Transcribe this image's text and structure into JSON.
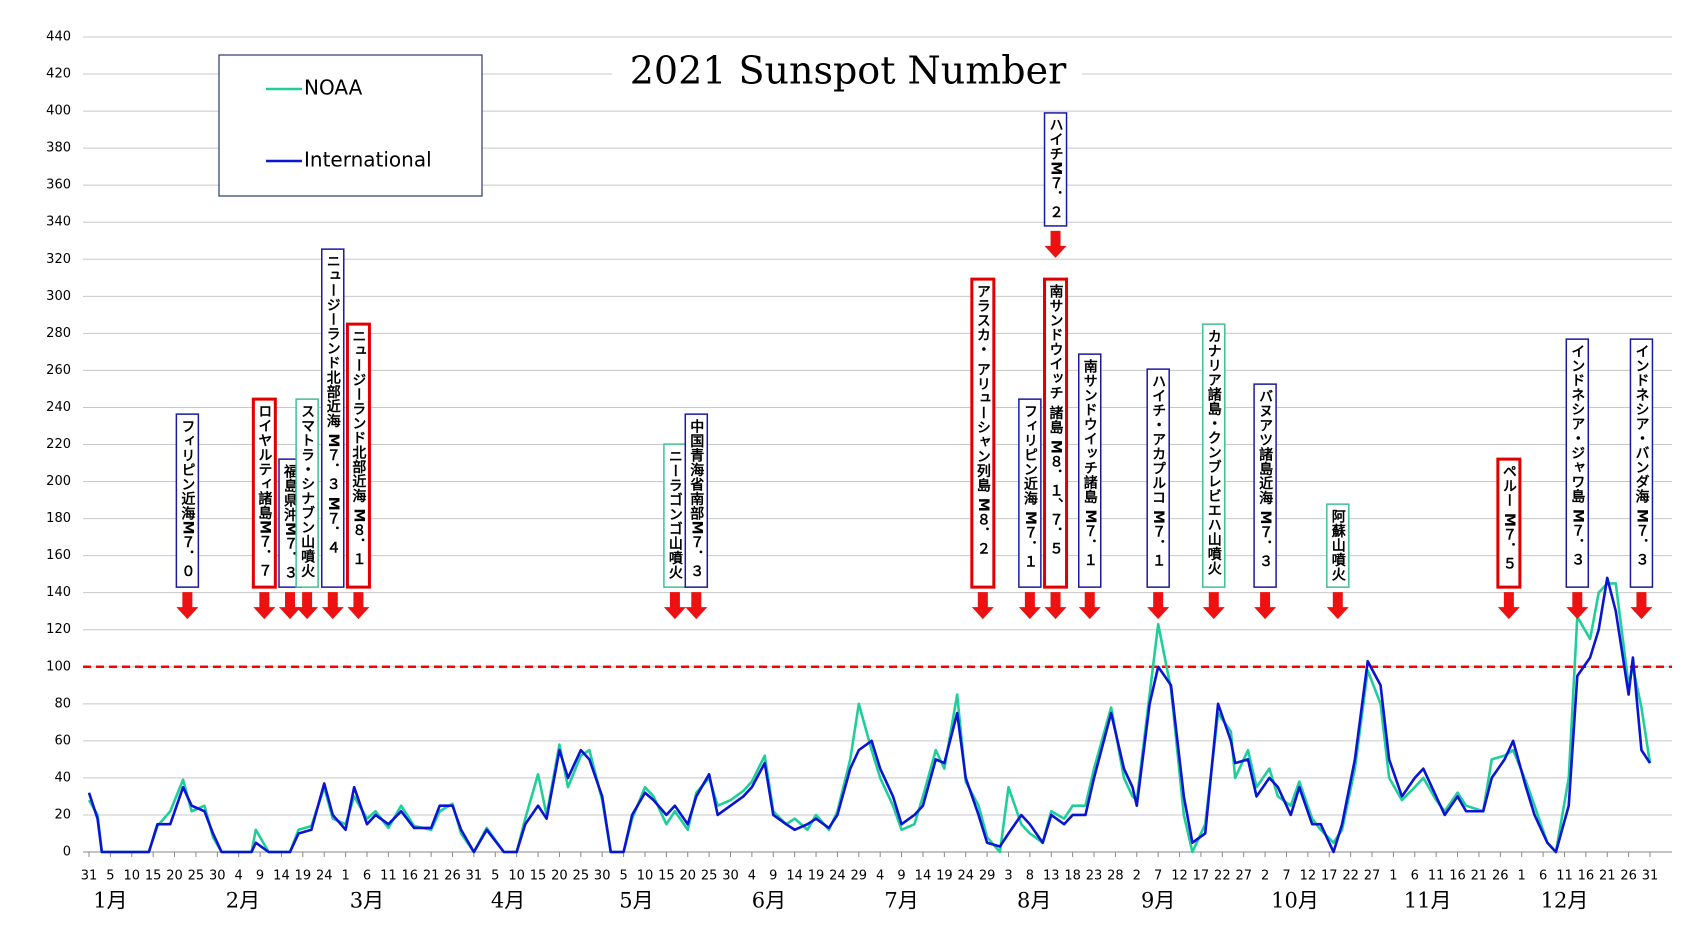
{
  "chart_data": {
    "type": "line",
    "title": "2021 Sunspot Number",
    "x": [
      0,
      2,
      3,
      14,
      16,
      19,
      22,
      24,
      27,
      29,
      31,
      38,
      39,
      42,
      47,
      49,
      52,
      55,
      57,
      60,
      62,
      65,
      67,
      70,
      73,
      76,
      80,
      82,
      85,
      87,
      90,
      93,
      97,
      100,
      102,
      105,
      107,
      110,
      112,
      115,
      117,
      120,
      122,
      125,
      127,
      130,
      132,
      135,
      137,
      140,
      142,
      145,
      147,
      150,
      153,
      155,
      158,
      160,
      163,
      165,
      168,
      170,
      173,
      175,
      178,
      180,
      183,
      185,
      188,
      190,
      193,
      195,
      198,
      200,
      203,
      205,
      208,
      210,
      213,
      215,
      218,
      220,
      223,
      225,
      228,
      230,
      233,
      235,
      239,
      242,
      244,
      245,
      248,
      250,
      253,
      256,
      258,
      261,
      264,
      267,
      268,
      271,
      273,
      276,
      278,
      281,
      283,
      286,
      288,
      291,
      293,
      296,
      299,
      302,
      304,
      307,
      310,
      312,
      315,
      317,
      320,
      322,
      326,
      328,
      331,
      333,
      336,
      338,
      341,
      343,
      346,
      348,
      351,
      353,
      355,
      357,
      360,
      361,
      363,
      365
    ],
    "series": [
      {
        "name": "NOAA",
        "color": "#1fcf9a",
        "values": [
          28,
          20,
          0,
          0,
          14,
          22,
          39,
          22,
          25,
          8,
          0,
          0,
          12,
          0,
          0,
          12,
          14,
          35,
          18,
          15,
          30,
          18,
          22,
          13,
          25,
          14,
          12,
          22,
          26,
          10,
          0,
          13,
          0,
          0,
          18,
          42,
          20,
          58,
          35,
          52,
          55,
          28,
          0,
          0,
          18,
          35,
          30,
          15,
          22,
          12,
          32,
          40,
          25,
          28,
          33,
          38,
          52,
          22,
          15,
          18,
          12,
          20,
          12,
          22,
          50,
          80,
          55,
          40,
          25,
          12,
          15,
          30,
          55,
          45,
          85,
          38,
          25,
          8,
          0,
          35,
          15,
          10,
          5,
          22,
          18,
          25,
          25,
          45,
          78,
          40,
          30,
          28,
          85,
          123,
          88,
          20,
          0,
          15,
          75,
          65,
          40,
          55,
          35,
          45,
          30,
          25,
          38,
          18,
          12,
          5,
          12,
          45,
          98,
          80,
          40,
          28,
          35,
          40,
          28,
          22,
          32,
          25,
          22,
          50,
          52,
          55,
          38,
          25,
          5,
          0,
          40,
          127,
          115,
          140,
          145,
          145,
          90,
          100,
          78,
          48
        ]
      },
      {
        "name": "International",
        "color": "#0a14d2",
        "values": [
          32,
          18,
          0,
          0,
          15,
          15,
          35,
          25,
          22,
          10,
          0,
          0,
          5,
          0,
          0,
          10,
          12,
          37,
          20,
          12,
          35,
          15,
          20,
          15,
          22,
          13,
          13,
          25,
          25,
          12,
          0,
          12,
          0,
          0,
          15,
          25,
          18,
          55,
          40,
          55,
          50,
          30,
          0,
          0,
          20,
          32,
          28,
          20,
          25,
          15,
          30,
          42,
          20,
          25,
          30,
          35,
          48,
          20,
          15,
          12,
          15,
          18,
          13,
          20,
          45,
          55,
          60,
          45,
          30,
          15,
          20,
          25,
          50,
          48,
          75,
          40,
          20,
          5,
          3,
          10,
          20,
          15,
          5,
          20,
          15,
          20,
          20,
          40,
          75,
          45,
          35,
          25,
          80,
          100,
          90,
          30,
          5,
          10,
          80,
          60,
          48,
          50,
          30,
          40,
          35,
          20,
          35,
          15,
          15,
          0,
          15,
          50,
          103,
          90,
          50,
          30,
          40,
          45,
          30,
          20,
          30,
          22,
          22,
          40,
          50,
          60,
          35,
          20,
          5,
          0,
          25,
          95,
          105,
          120,
          148,
          130,
          85,
          105,
          55,
          48
        ]
      }
    ],
    "xlim": [
      0,
      365
    ],
    "xticks": [
      {
        "value": 0,
        "label": "31"
      },
      {
        "value": 5,
        "label": "5"
      },
      {
        "value": 10,
        "label": "10"
      },
      {
        "value": 15,
        "label": "15"
      },
      {
        "value": 20,
        "label": "20"
      },
      {
        "value": 25,
        "label": "25"
      },
      {
        "value": 30,
        "label": "30"
      },
      {
        "value": 35,
        "label": "4"
      },
      {
        "value": 40,
        "label": "9"
      },
      {
        "value": 45,
        "label": "14"
      },
      {
        "value": 50,
        "label": "19"
      },
      {
        "value": 55,
        "label": "24"
      },
      {
        "value": 60,
        "label": "1"
      },
      {
        "value": 65,
        "label": "6"
      },
      {
        "value": 70,
        "label": "11"
      },
      {
        "value": 75,
        "label": "16"
      },
      {
        "value": 80,
        "label": "21"
      },
      {
        "value": 85,
        "label": "26"
      },
      {
        "value": 90,
        "label": "31"
      },
      {
        "value": 95,
        "label": "5"
      },
      {
        "value": 100,
        "label": "10"
      },
      {
        "value": 105,
        "label": "15"
      },
      {
        "value": 110,
        "label": "20"
      },
      {
        "value": 115,
        "label": "25"
      },
      {
        "value": 120,
        "label": "30"
      },
      {
        "value": 125,
        "label": "5"
      },
      {
        "value": 130,
        "label": "10"
      },
      {
        "value": 135,
        "label": "15"
      },
      {
        "value": 140,
        "label": "20"
      },
      {
        "value": 145,
        "label": "25"
      },
      {
        "value": 150,
        "label": "30"
      },
      {
        "value": 155,
        "label": "4"
      },
      {
        "value": 160,
        "label": "9"
      },
      {
        "value": 165,
        "label": "14"
      },
      {
        "value": 170,
        "label": "19"
      },
      {
        "value": 175,
        "label": "24"
      },
      {
        "value": 180,
        "label": "29"
      },
      {
        "value": 185,
        "label": "4"
      },
      {
        "value": 190,
        "label": "9"
      },
      {
        "value": 195,
        "label": "14"
      },
      {
        "value": 200,
        "label": "19"
      },
      {
        "value": 205,
        "label": "24"
      },
      {
        "value": 210,
        "label": "29"
      },
      {
        "value": 215,
        "label": "3"
      },
      {
        "value": 220,
        "label": "8"
      },
      {
        "value": 225,
        "label": "13"
      },
      {
        "value": 230,
        "label": "18"
      },
      {
        "value": 235,
        "label": "23"
      },
      {
        "value": 240,
        "label": "28"
      },
      {
        "value": 245,
        "label": "2"
      },
      {
        "value": 250,
        "label": "7"
      },
      {
        "value": 255,
        "label": "12"
      },
      {
        "value": 260,
        "label": "17"
      },
      {
        "value": 265,
        "label": "22"
      },
      {
        "value": 270,
        "label": "27"
      },
      {
        "value": 275,
        "label": "2"
      },
      {
        "value": 280,
        "label": "7"
      },
      {
        "value": 285,
        "label": "12"
      },
      {
        "value": 290,
        "label": "17"
      },
      {
        "value": 295,
        "label": "22"
      },
      {
        "value": 300,
        "label": "27"
      },
      {
        "value": 305,
        "label": "1"
      },
      {
        "value": 310,
        "label": "6"
      },
      {
        "value": 315,
        "label": "11"
      },
      {
        "value": 320,
        "label": "16"
      },
      {
        "value": 325,
        "label": "21"
      },
      {
        "value": 330,
        "label": "26"
      },
      {
        "value": 335,
        "label": "1"
      },
      {
        "value": 340,
        "label": "6"
      },
      {
        "value": 345,
        "label": "11"
      },
      {
        "value": 350,
        "label": "16"
      },
      {
        "value": 355,
        "label": "21"
      },
      {
        "value": 360,
        "label": "26"
      },
      {
        "value": 365,
        "label": "31"
      }
    ],
    "month_labels": [
      {
        "value": 5,
        "label": "1月"
      },
      {
        "value": 36,
        "label": "2月"
      },
      {
        "value": 65,
        "label": "3月"
      },
      {
        "value": 98,
        "label": "4月"
      },
      {
        "value": 128,
        "label": "5月"
      },
      {
        "value": 159,
        "label": "6月"
      },
      {
        "value": 190,
        "label": "7月"
      },
      {
        "value": 221,
        "label": "8月"
      },
      {
        "value": 250,
        "label": "9月"
      },
      {
        "value": 282,
        "label": "10月"
      },
      {
        "value": 313,
        "label": "11月"
      },
      {
        "value": 345,
        "label": "12月"
      }
    ],
    "ylim": [
      0,
      440
    ],
    "yticks": [
      0,
      20,
      40,
      60,
      80,
      100,
      120,
      140,
      160,
      180,
      200,
      220,
      240,
      260,
      280,
      300,
      320,
      340,
      360,
      380,
      400,
      420,
      440
    ],
    "grid": true,
    "reference_line": {
      "value": 100,
      "color": "#ff0000"
    },
    "annotations": [
      {
        "x": 23,
        "text": "フィリピン近海M７．０",
        "border": "#1a1aa0"
      },
      {
        "x": 41,
        "text": "ロイヤルティ諸島M７．７",
        "border": "#e00000"
      },
      {
        "x": 47,
        "text": "福島県沖M７．３",
        "border": "#1a1aa0"
      },
      {
        "x": 51,
        "text": "スマトラ・シナブン山噴火",
        "border": "#40c090"
      },
      {
        "x": 57,
        "text": "ニュージーランド北部近海 M７．３ M７．４",
        "border": "#1a1aa0"
      },
      {
        "x": 63,
        "text": "ニュージーランド北部近海 M８．１",
        "border": "#e00000"
      },
      {
        "x": 137,
        "text": "ニーラゴンゴ山噴火",
        "border": "#40c090"
      },
      {
        "x": 142,
        "text": "中国青海省南部M７．３",
        "border": "#1a1aa0"
      },
      {
        "x": 209,
        "text": "アラスカ・ アリューシャン列島 M８．２",
        "border": "#e00000"
      },
      {
        "x": 220,
        "text": "フィリピン近海 M７．１",
        "border": "#1a1aa0"
      },
      {
        "x": 226,
        "text": "南サンドウイッチ 諸島 M８．１、７．５",
        "border": "#e00000"
      },
      {
        "x": 226,
        "text": "ハイチM７．２",
        "border": "#1a1aa0"
      },
      {
        "x": 234,
        "text": "南サンドウイッチ諸島 M７．１",
        "border": "#1a1aa0"
      },
      {
        "x": 250,
        "text": "ハイチ・アカプルコ M７．１",
        "border": "#1a1aa0"
      },
      {
        "x": 263,
        "text": "カナリア諸島・クンブレビエハ山噴火",
        "border": "#40c090"
      },
      {
        "x": 275,
        "text": "バヌアツ諸島近海 M７．３",
        "border": "#1a1aa0"
      },
      {
        "x": 292,
        "text": "阿蘇山噴火",
        "border": "#40c090"
      },
      {
        "x": 332,
        "text": "ペルー M７．５",
        "border": "#e00000"
      },
      {
        "x": 348,
        "text": "インドネシア・ジャワ島 M７．３",
        "border": "#1a1aa0"
      },
      {
        "x": 363,
        "text": "インドネシア・バンダ海 M７．３",
        "border": "#1a1aa0"
      }
    ]
  }
}
